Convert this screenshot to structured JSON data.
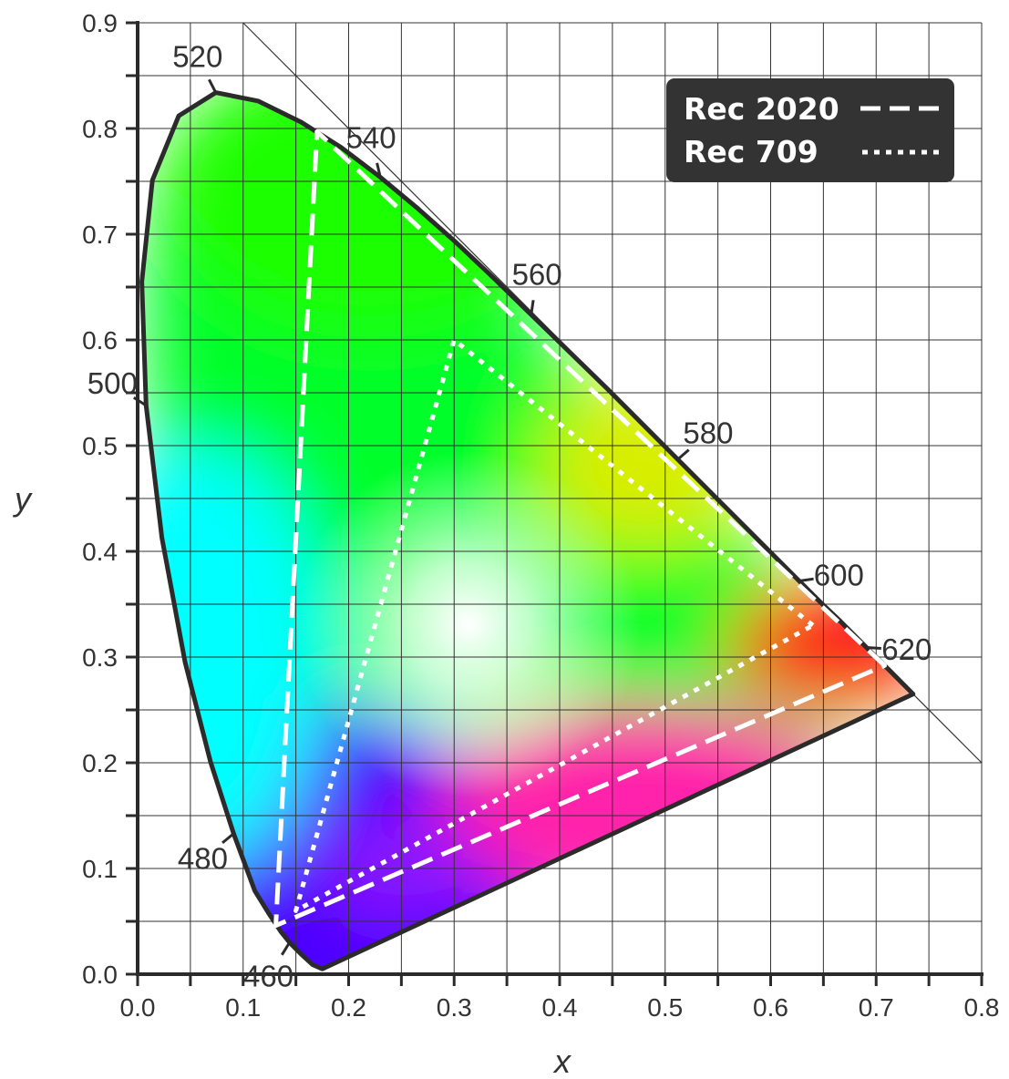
{
  "chart_data": {
    "type": "scatter",
    "xlabel": "x",
    "ylabel": "y",
    "xlim": [
      0.0,
      0.8
    ],
    "ylim": [
      0.0,
      0.9
    ],
    "x_ticks": [
      "0.0",
      "0.1",
      "0.2",
      "0.3",
      "0.4",
      "0.5",
      "0.6",
      "0.7",
      "0.8"
    ],
    "y_ticks": [
      "0.0",
      "0.1",
      "0.2",
      "0.3",
      "0.4",
      "0.5",
      "0.6",
      "0.7",
      "0.8",
      "0.9"
    ],
    "grid": true,
    "legend_position": "top-right",
    "spectral_locus": {
      "points": [
        [
          0.175,
          0.005
        ],
        [
          0.166,
          0.009
        ],
        [
          0.155,
          0.019
        ],
        [
          0.144,
          0.03
        ],
        [
          0.136,
          0.04
        ],
        [
          0.124,
          0.058
        ],
        [
          0.111,
          0.079
        ],
        [
          0.091,
          0.133
        ],
        [
          0.069,
          0.201
        ],
        [
          0.045,
          0.295
        ],
        [
          0.023,
          0.413
        ],
        [
          0.008,
          0.538
        ],
        [
          0.004,
          0.655
        ],
        [
          0.014,
          0.751
        ],
        [
          0.039,
          0.812
        ],
        [
          0.074,
          0.834
        ],
        [
          0.114,
          0.826
        ],
        [
          0.155,
          0.806
        ],
        [
          0.193,
          0.782
        ],
        [
          0.23,
          0.754
        ],
        [
          0.266,
          0.724
        ],
        [
          0.302,
          0.692
        ],
        [
          0.337,
          0.659
        ],
        [
          0.373,
          0.624
        ],
        [
          0.409,
          0.589
        ],
        [
          0.445,
          0.554
        ],
        [
          0.479,
          0.52
        ],
        [
          0.512,
          0.487
        ],
        [
          0.545,
          0.454
        ],
        [
          0.576,
          0.423
        ],
        [
          0.603,
          0.396
        ],
        [
          0.627,
          0.372
        ],
        [
          0.648,
          0.351
        ],
        [
          0.666,
          0.334
        ],
        [
          0.68,
          0.32
        ],
        [
          0.691,
          0.309
        ],
        [
          0.714,
          0.286
        ],
        [
          0.735,
          0.265
        ]
      ],
      "wavelength_markers": [
        {
          "label": "460",
          "x": 0.144,
          "y": 0.03
        },
        {
          "label": "480",
          "x": 0.091,
          "y": 0.133
        },
        {
          "label": "500",
          "x": 0.008,
          "y": 0.538
        },
        {
          "label": "520",
          "x": 0.074,
          "y": 0.834
        },
        {
          "label": "540",
          "x": 0.23,
          "y": 0.754
        },
        {
          "label": "560",
          "x": 0.373,
          "y": 0.624
        },
        {
          "label": "580",
          "x": 0.512,
          "y": 0.487
        },
        {
          "label": "600",
          "x": 0.627,
          "y": 0.372
        },
        {
          "label": "620",
          "x": 0.691,
          "y": 0.309
        }
      ]
    },
    "series": [
      {
        "name": "Rec 2020",
        "style": "dashed",
        "color": "#ffffff",
        "points": [
          [
            0.708,
            0.292
          ],
          [
            0.17,
            0.797
          ],
          [
            0.131,
            0.046
          ]
        ]
      },
      {
        "name": "Rec 709",
        "style": "dotted",
        "color": "#ffffff",
        "points": [
          [
            0.64,
            0.33
          ],
          [
            0.3,
            0.6
          ],
          [
            0.15,
            0.06
          ]
        ]
      }
    ],
    "gamut_colors": {
      "blue": "#4a00ff",
      "cyan": "#00ffff",
      "green": "#00ff2a",
      "green_yellow": "#1aff00",
      "yellow": "#d8ee00",
      "red": "#ff0014",
      "magenta": "#ff22aa",
      "white_point": "#ffffff"
    },
    "legend_background": "#333333"
  }
}
